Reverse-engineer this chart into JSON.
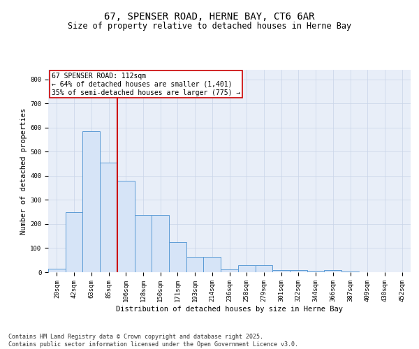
{
  "title_line1": "67, SPENSER ROAD, HERNE BAY, CT6 6AR",
  "title_line2": "Size of property relative to detached houses in Herne Bay",
  "xlabel": "Distribution of detached houses by size in Herne Bay",
  "ylabel": "Number of detached properties",
  "categories": [
    "20sqm",
    "42sqm",
    "63sqm",
    "85sqm",
    "106sqm",
    "128sqm",
    "150sqm",
    "171sqm",
    "193sqm",
    "214sqm",
    "236sqm",
    "258sqm",
    "279sqm",
    "301sqm",
    "322sqm",
    "344sqm",
    "366sqm",
    "387sqm",
    "409sqm",
    "430sqm",
    "452sqm"
  ],
  "values": [
    15,
    250,
    585,
    455,
    380,
    238,
    238,
    125,
    65,
    65,
    12,
    30,
    30,
    10,
    10,
    7,
    10,
    3,
    1,
    0,
    1
  ],
  "bar_color": "#d6e4f7",
  "bar_edge_color": "#5b9bd5",
  "grid_color": "#c8d4e8",
  "bg_color": "#e8eef8",
  "vline_color": "#cc0000",
  "vline_position": 3.5,
  "annotation_text": "67 SPENSER ROAD: 112sqm\n← 64% of detached houses are smaller (1,401)\n35% of semi-detached houses are larger (775) →",
  "annotation_box_color": "#cc0000",
  "ylim": [
    0,
    840
  ],
  "yticks": [
    0,
    100,
    200,
    300,
    400,
    500,
    600,
    700,
    800
  ],
  "footer_text": "Contains HM Land Registry data © Crown copyright and database right 2025.\nContains public sector information licensed under the Open Government Licence v3.0.",
  "title_fontsize": 10,
  "subtitle_fontsize": 8.5,
  "axis_label_fontsize": 7.5,
  "ylabel_fontsize": 7.5,
  "tick_fontsize": 6.5,
  "annotation_fontsize": 7,
  "footer_fontsize": 6
}
